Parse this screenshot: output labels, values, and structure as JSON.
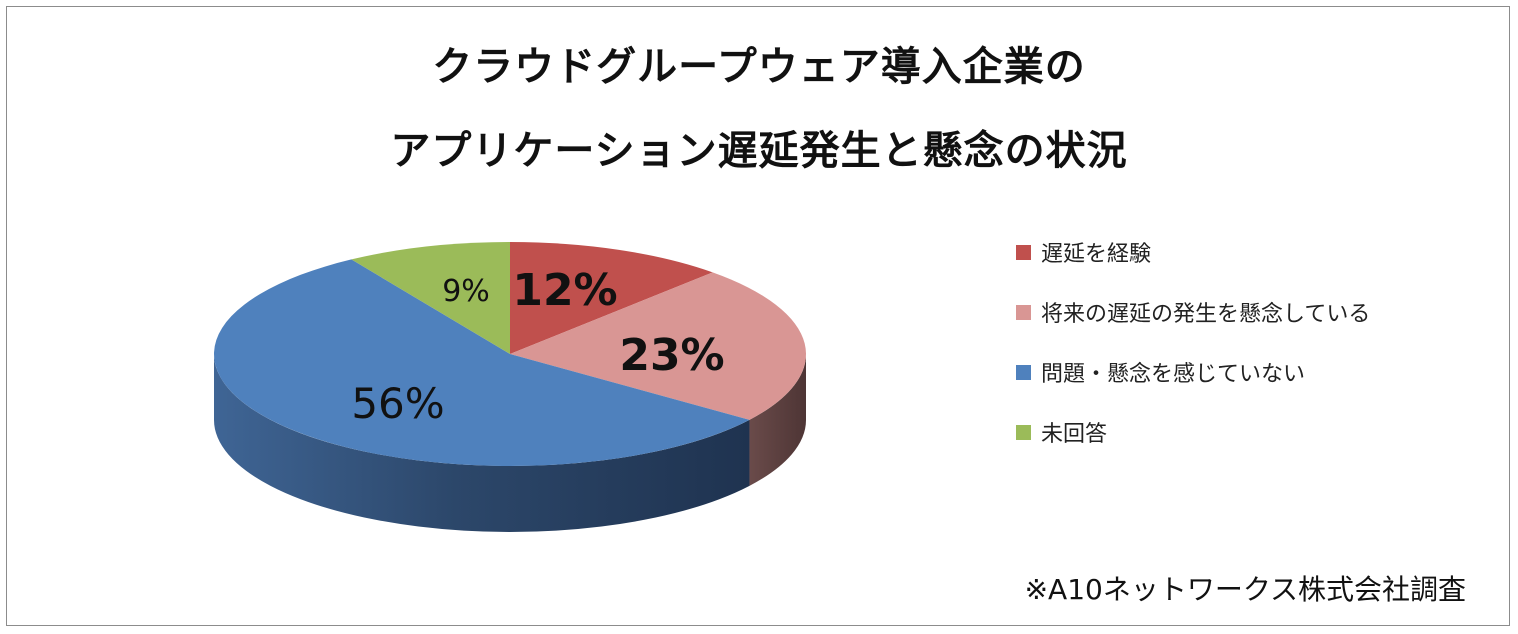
{
  "chart_data": {
    "type": "pie",
    "title_lines": [
      "クラウドグループウェア導入企業の",
      "アプリケーション遅延発生と懸念の状況"
    ],
    "slices": [
      {
        "label": "遅延を経験",
        "value": 12,
        "display": "12%",
        "color": "#c0504d"
      },
      {
        "label": "将来の遅延の発生を懸念している",
        "value": 23,
        "display": "23%",
        "color": "#d99694"
      },
      {
        "label": "問題・懸念を感じていない",
        "value": 56,
        "display": "56%",
        "color": "#4f81bd"
      },
      {
        "label": "未回答",
        "value": 9,
        "display": "9%",
        "color": "#9bbb59"
      }
    ],
    "legend_position": "right",
    "three_d": true,
    "source_note": "※A10ネットワークス株式会社調査"
  }
}
